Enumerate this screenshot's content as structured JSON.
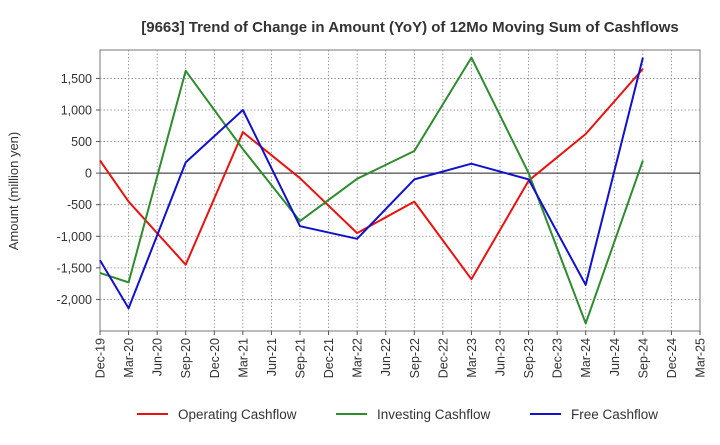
{
  "chart_data": {
    "type": "line",
    "title": "[9663]  Trend of Change in Amount (YoY) of 12Mo Moving Sum of Cashflows",
    "ylabel": "Amount (million yen)",
    "xlabel": "",
    "ylim": [
      -2500,
      1950
    ],
    "yticks": [
      1500,
      1000,
      500,
      0,
      -500,
      -1000,
      -1500,
      -2000
    ],
    "ytick_labels": [
      "1,500",
      "1,000",
      "500",
      "0",
      "-500",
      "-1,000",
      "-1,500",
      "-2,000"
    ],
    "categories": [
      "Dec-19",
      "Mar-20",
      "Jun-20",
      "Sep-20",
      "Dec-20",
      "Mar-21",
      "Jun-21",
      "Sep-21",
      "Dec-21",
      "Mar-22",
      "Jun-22",
      "Sep-22",
      "Dec-22",
      "Mar-23",
      "Jun-23",
      "Sep-23",
      "Dec-23",
      "Mar-24",
      "Jun-24",
      "Sep-24",
      "Dec-24",
      "Mar-25"
    ],
    "grid": true,
    "legend_position": "bottom",
    "series": [
      {
        "name": "Operating Cashflow",
        "color": "#e8130f",
        "values": [
          200,
          -450,
          null,
          -1450,
          null,
          650,
          null,
          -80,
          null,
          -950,
          null,
          -450,
          null,
          -1680,
          null,
          -120,
          null,
          620,
          null,
          1650,
          null,
          null
        ]
      },
      {
        "name": "Investing Cashflow",
        "color": "#2e8b2e",
        "values": [
          -1580,
          -1730,
          null,
          1620,
          null,
          380,
          null,
          -760,
          null,
          -90,
          null,
          350,
          null,
          1830,
          null,
          0,
          null,
          -2380,
          null,
          200,
          null,
          null
        ]
      },
      {
        "name": "Free Cashflow",
        "color": "#1111cc",
        "values": [
          -1380,
          -2140,
          null,
          170,
          null,
          1000,
          null,
          -840,
          null,
          -1040,
          null,
          -100,
          null,
          150,
          null,
          -100,
          null,
          -1770,
          null,
          1830,
          null,
          null
        ]
      }
    ]
  }
}
